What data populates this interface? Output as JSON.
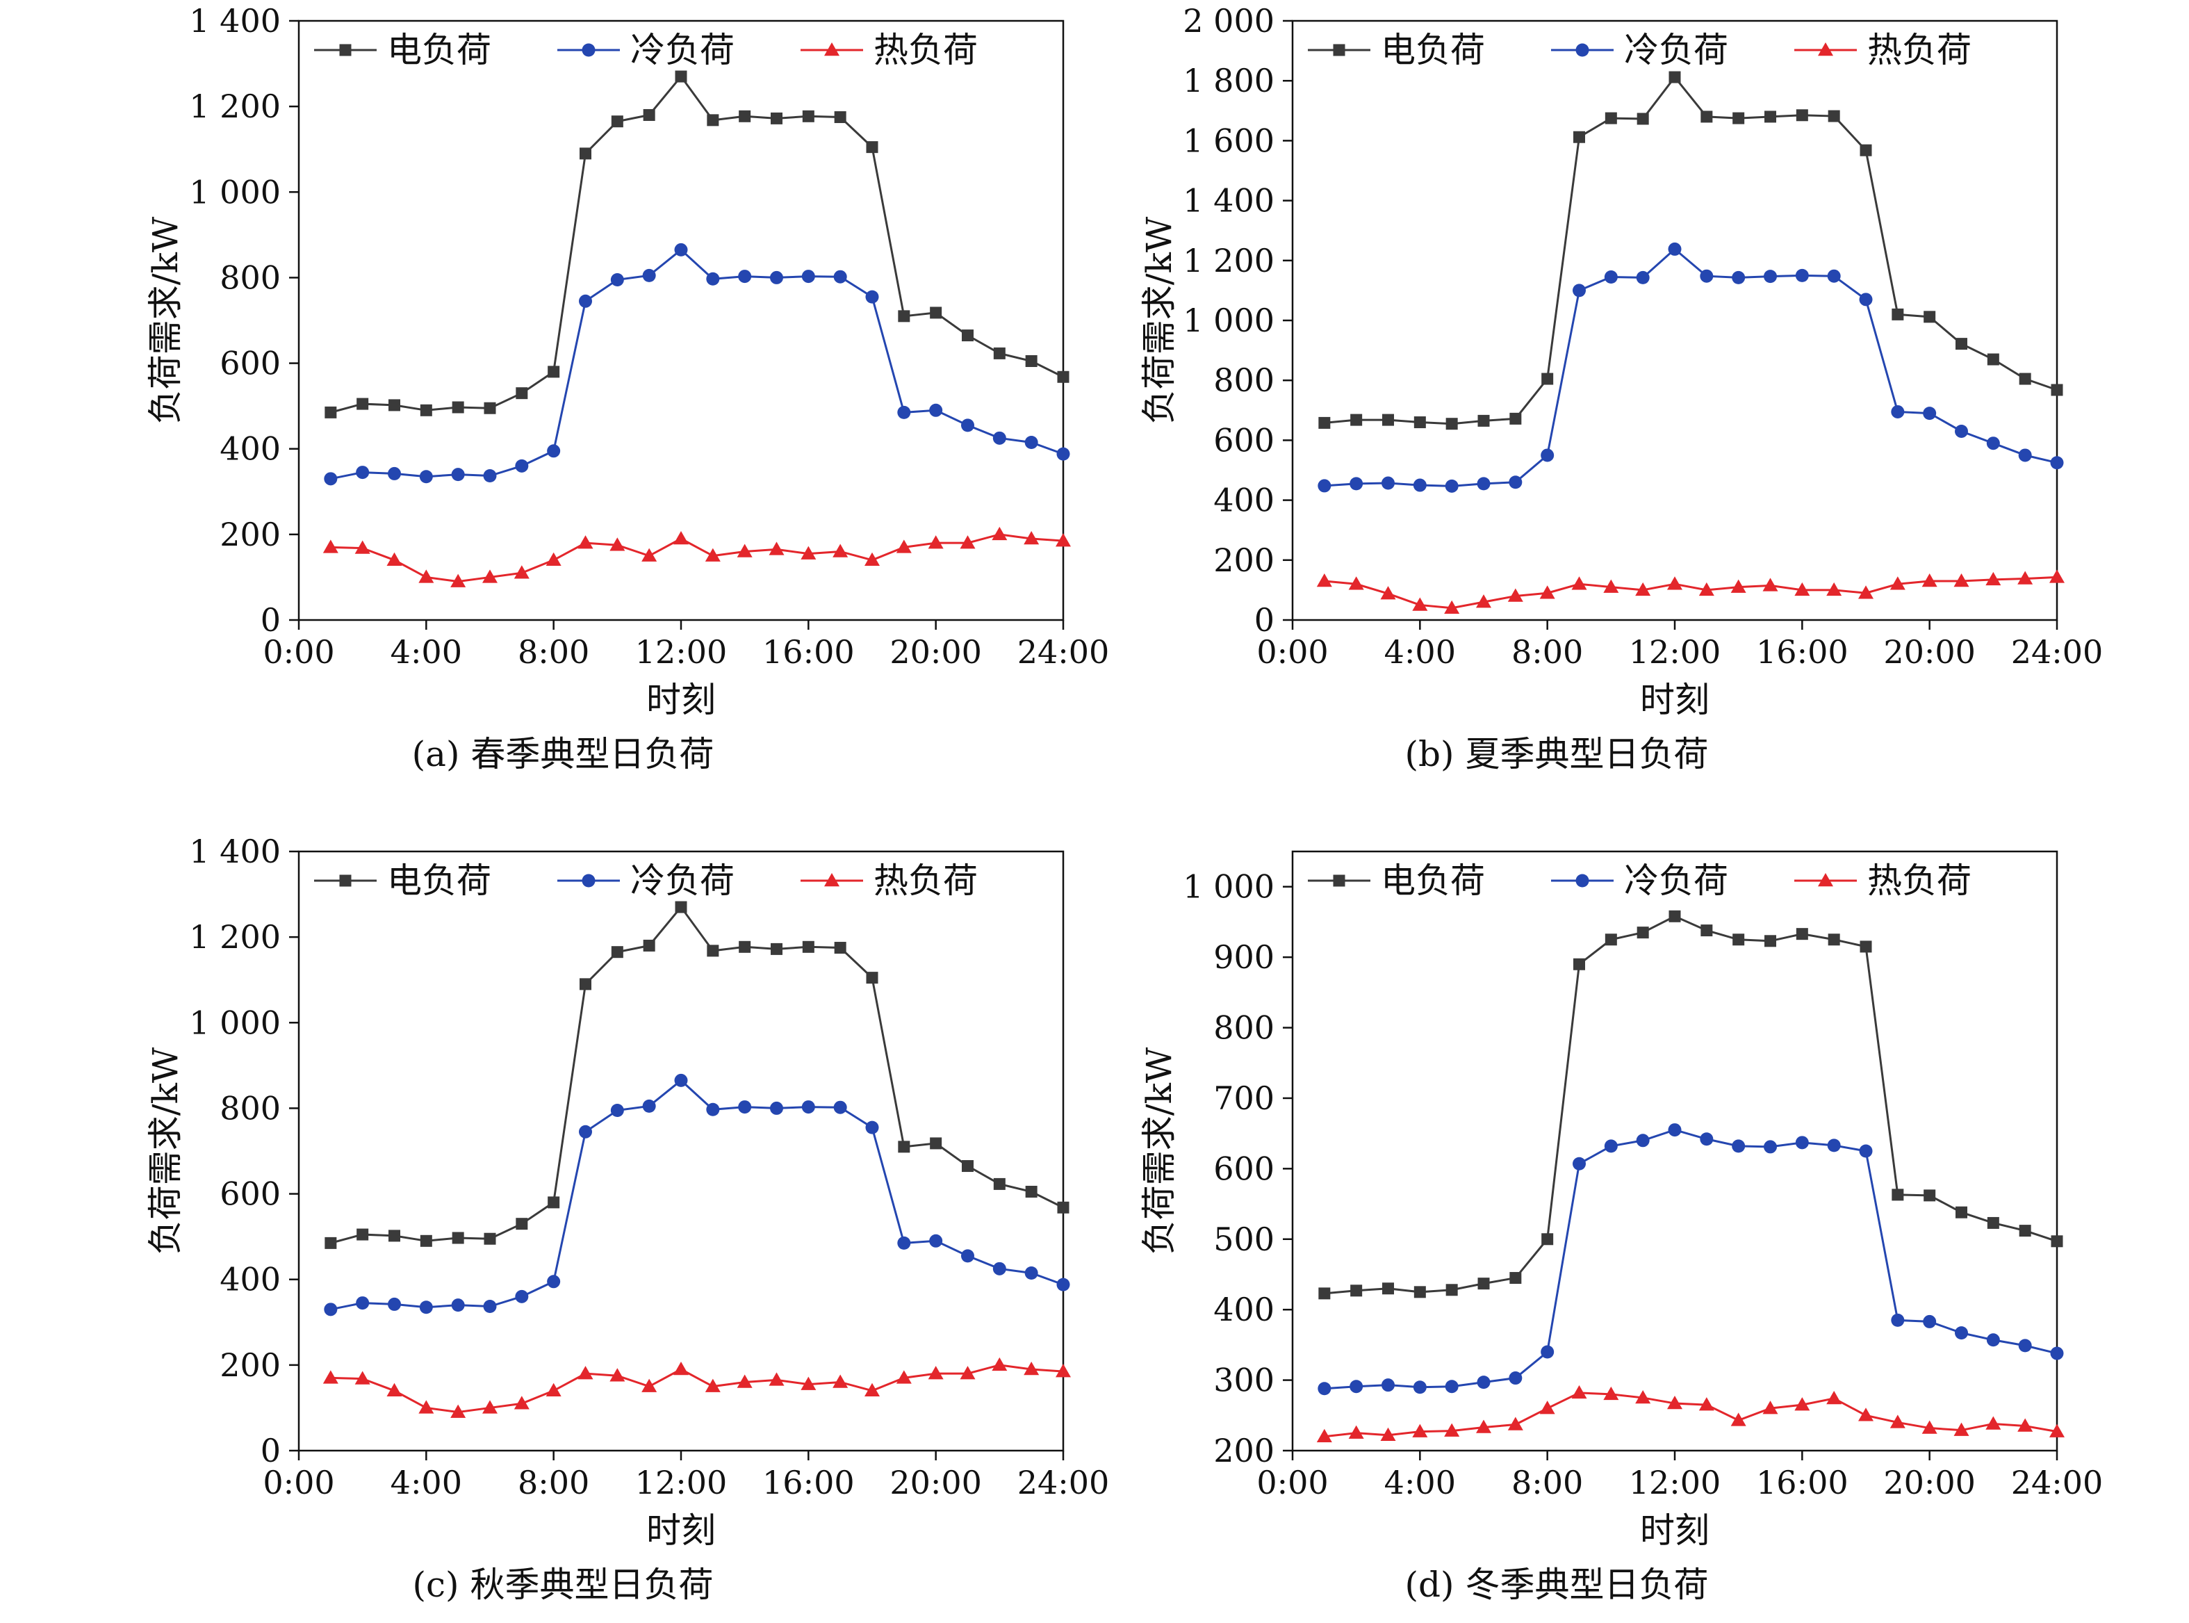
{
  "x_ticks": [
    "0:00",
    "4:00",
    "8:00",
    "12:00",
    "16:00",
    "20:00",
    "24:00"
  ],
  "series_colors": {
    "electric": "#3a3a3a",
    "cooling": "#2446b0",
    "heating": "#e3262b"
  },
  "chart_data": [
    {
      "type": "line",
      "caption": "(a) 春季典型日负荷",
      "xlabel": "时刻",
      "ylabel": "负荷需求/kW",
      "xlim": [
        0,
        24
      ],
      "ylim": [
        0,
        1400
      ],
      "yticks": [
        0,
        200,
        400,
        600,
        800,
        1000,
        1200,
        1400
      ],
      "ytick_labels": [
        "0",
        "200",
        "400",
        "600",
        "800",
        "1 000",
        "1 200",
        "1 400"
      ],
      "legend_position": "top",
      "grid": false,
      "x": [
        1,
        2,
        3,
        4,
        5,
        6,
        7,
        8,
        9,
        10,
        11,
        12,
        13,
        14,
        15,
        16,
        17,
        18,
        19,
        20,
        21,
        22,
        23,
        24
      ],
      "series": [
        {
          "name": "电负荷",
          "marker": "square",
          "values": [
            485,
            505,
            502,
            490,
            497,
            495,
            530,
            580,
            1090,
            1165,
            1180,
            1270,
            1168,
            1177,
            1172,
            1177,
            1175,
            1105,
            710,
            718,
            665,
            623,
            605,
            568
          ]
        },
        {
          "name": "冷负荷",
          "marker": "circle",
          "values": [
            330,
            345,
            342,
            335,
            340,
            337,
            360,
            395,
            745,
            795,
            805,
            865,
            797,
            803,
            800,
            803,
            802,
            755,
            485,
            490,
            455,
            425,
            415,
            388
          ]
        },
        {
          "name": "热负荷",
          "marker": "triangle",
          "values": [
            170,
            168,
            140,
            100,
            90,
            100,
            110,
            140,
            180,
            175,
            150,
            190,
            150,
            160,
            165,
            155,
            160,
            140,
            170,
            180,
            180,
            200,
            190,
            185
          ]
        }
      ]
    },
    {
      "type": "line",
      "caption": "(b) 夏季典型日负荷",
      "xlabel": "时刻",
      "ylabel": "负荷需求/kW",
      "xlim": [
        0,
        24
      ],
      "ylim": [
        0,
        2000
      ],
      "yticks": [
        0,
        200,
        400,
        600,
        800,
        1000,
        1200,
        1400,
        1600,
        1800,
        2000
      ],
      "ytick_labels": [
        "0",
        "200",
        "400",
        "600",
        "800",
        "1 000",
        "1 200",
        "1 400",
        "1 600",
        "1 800",
        "2 000"
      ],
      "legend_position": "top",
      "grid": false,
      "x": [
        1,
        2,
        3,
        4,
        5,
        6,
        7,
        8,
        9,
        10,
        11,
        12,
        13,
        14,
        15,
        16,
        17,
        18,
        19,
        20,
        21,
        22,
        23,
        24
      ],
      "series": [
        {
          "name": "电负荷",
          "marker": "square",
          "values": [
            658,
            668,
            668,
            660,
            655,
            665,
            672,
            805,
            1612,
            1675,
            1673,
            1812,
            1680,
            1675,
            1680,
            1685,
            1682,
            1568,
            1020,
            1012,
            922,
            870,
            805,
            768
          ]
        },
        {
          "name": "冷负荷",
          "marker": "circle",
          "values": [
            448,
            455,
            457,
            450,
            447,
            455,
            460,
            550,
            1100,
            1145,
            1143,
            1238,
            1148,
            1143,
            1147,
            1150,
            1148,
            1070,
            695,
            690,
            630,
            590,
            550,
            525
          ]
        },
        {
          "name": "热负荷",
          "marker": "triangle",
          "values": [
            130,
            120,
            88,
            50,
            40,
            60,
            80,
            90,
            120,
            110,
            100,
            120,
            100,
            110,
            115,
            100,
            100,
            90,
            120,
            130,
            130,
            135,
            138,
            143
          ]
        }
      ]
    },
    {
      "type": "line",
      "caption": "(c) 秋季典型日负荷",
      "xlabel": "时刻",
      "ylabel": "负荷需求/kW",
      "xlim": [
        0,
        24
      ],
      "ylim": [
        0,
        1400
      ],
      "yticks": [
        0,
        200,
        400,
        600,
        800,
        1000,
        1200,
        1400
      ],
      "ytick_labels": [
        "0",
        "200",
        "400",
        "600",
        "800",
        "1 000",
        "1 200",
        "1 400"
      ],
      "legend_position": "top",
      "grid": false,
      "x": [
        1,
        2,
        3,
        4,
        5,
        6,
        7,
        8,
        9,
        10,
        11,
        12,
        13,
        14,
        15,
        16,
        17,
        18,
        19,
        20,
        21,
        22,
        23,
        24
      ],
      "series": [
        {
          "name": "电负荷",
          "marker": "square",
          "values": [
            485,
            505,
            502,
            490,
            497,
            495,
            530,
            580,
            1090,
            1165,
            1180,
            1270,
            1168,
            1177,
            1172,
            1177,
            1175,
            1105,
            710,
            718,
            665,
            623,
            605,
            568
          ]
        },
        {
          "name": "冷负荷",
          "marker": "circle",
          "values": [
            330,
            345,
            342,
            335,
            340,
            337,
            360,
            395,
            745,
            795,
            805,
            865,
            797,
            803,
            800,
            803,
            802,
            755,
            485,
            490,
            455,
            425,
            415,
            388
          ]
        },
        {
          "name": "热负荷",
          "marker": "triangle",
          "values": [
            170,
            168,
            140,
            100,
            90,
            100,
            110,
            140,
            180,
            175,
            150,
            190,
            150,
            160,
            165,
            155,
            160,
            140,
            170,
            180,
            180,
            200,
            190,
            185
          ]
        }
      ]
    },
    {
      "type": "line",
      "caption": "(d) 冬季典型日负荷",
      "xlabel": "时刻",
      "ylabel": "负荷需求/kW",
      "xlim": [
        0,
        24
      ],
      "ylim": [
        200,
        1050
      ],
      "yticks": [
        200,
        300,
        400,
        500,
        600,
        700,
        800,
        900,
        1000
      ],
      "ytick_labels": [
        "200",
        "300",
        "400",
        "500",
        "600",
        "700",
        "800",
        "900",
        "1 000"
      ],
      "legend_position": "top",
      "grid": false,
      "x": [
        1,
        2,
        3,
        4,
        5,
        6,
        7,
        8,
        9,
        10,
        11,
        12,
        13,
        14,
        15,
        16,
        17,
        18,
        19,
        20,
        21,
        22,
        23,
        24
      ],
      "series": [
        {
          "name": "电负荷",
          "marker": "square",
          "values": [
            423,
            427,
            430,
            425,
            428,
            437,
            445,
            500,
            890,
            925,
            935,
            958,
            938,
            925,
            923,
            933,
            925,
            915,
            563,
            562,
            538,
            523,
            512,
            497
          ]
        },
        {
          "name": "冷负荷",
          "marker": "circle",
          "values": [
            288,
            291,
            293,
            290,
            291,
            297,
            303,
            340,
            607,
            632,
            640,
            655,
            642,
            632,
            631,
            637,
            633,
            625,
            385,
            383,
            367,
            357,
            349,
            338
          ]
        },
        {
          "name": "热负荷",
          "marker": "triangle",
          "values": [
            220,
            225,
            222,
            227,
            228,
            233,
            237,
            260,
            282,
            280,
            275,
            267,
            265,
            243,
            260,
            265,
            274,
            250,
            240,
            232,
            229,
            238,
            235,
            227
          ]
        }
      ]
    }
  ]
}
